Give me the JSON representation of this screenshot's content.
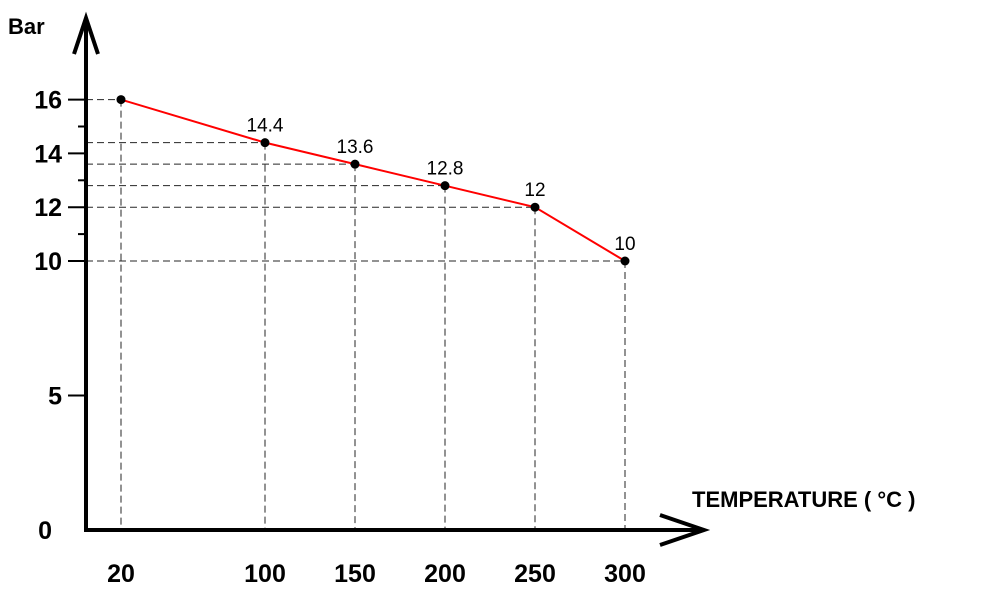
{
  "chart_data": {
    "type": "line",
    "title": "",
    "xlabel": "TEMPERATURE ( °C )",
    "ylabel": "Bar",
    "x": [
      20,
      100,
      150,
      200,
      250,
      300
    ],
    "x_tick_labels": [
      "20",
      "100",
      "150",
      "200",
      "250",
      "300"
    ],
    "y_tick_labels": [
      "0",
      "5",
      "10",
      "12",
      "14",
      "16"
    ],
    "series": [
      {
        "name": "",
        "values": [
          16,
          14.4,
          13.6,
          12.8,
          12,
          10
        ],
        "data_labels": [
          "",
          "14.4",
          "13.6",
          "12.8",
          "12",
          "10"
        ],
        "line_color": "#ff0000",
        "marker_color": "#000000"
      }
    ],
    "ylim": [
      0,
      17
    ],
    "grid": "dashed guide lines from each point to both axes",
    "axis_color": "#000000",
    "guide_color": "#000000"
  }
}
